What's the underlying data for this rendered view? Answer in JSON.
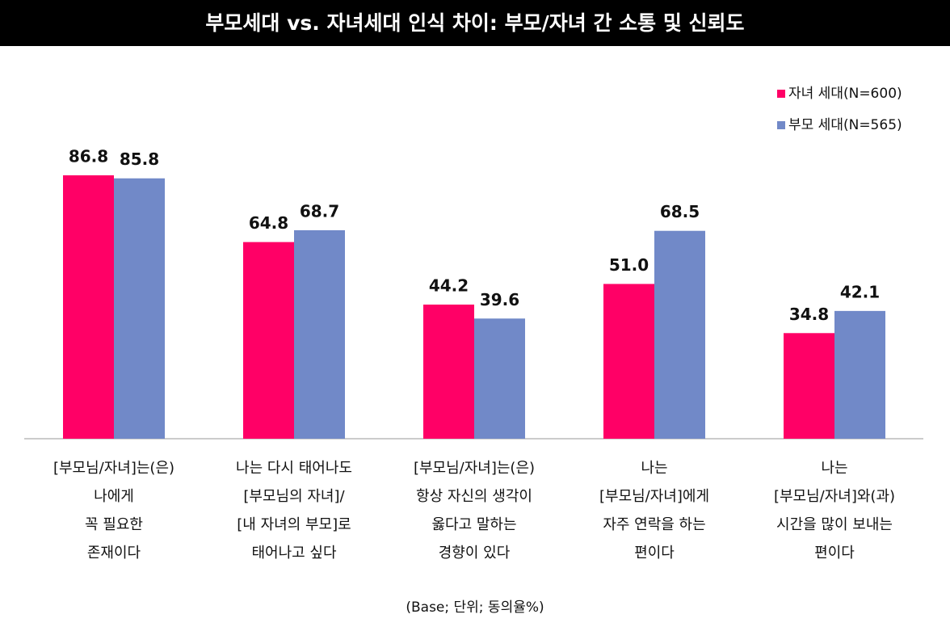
{
  "chart_data": {
    "type": "bar",
    "title": "부모세대  vs. 자녀세대 인식 차이: 부모/자녀 간 소통 및 신뢰도",
    "note": "(Base; 단위; 동의율%)",
    "categories": [
      [
        "[부모님/자녀]는(은)",
        "나에게",
        "꼭 필요한",
        "존재이다"
      ],
      [
        "나는 다시 태어나도",
        "[부모님의 자녀]/",
        "[내 자녀의 부모]로",
        "태어나고 싶다"
      ],
      [
        "[부모님/자녀]는(은)",
        "항상 자신의 생각이",
        "옳다고 말하는",
        "경향이 있다"
      ],
      [
        "나는",
        "[부모님/자녀]에게",
        "자주 연락을 하는",
        "편이다"
      ],
      [
        "나는",
        "[부모님/자녀]와(과)",
        "시간을 많이 보내는",
        "편이다"
      ]
    ],
    "series": [
      {
        "name": "자녀 세대(N=600)",
        "color": "#ff0066",
        "values": [
          86.8,
          64.8,
          44.2,
          51.0,
          34.8
        ],
        "value_labels": [
          "86.8",
          "64.8",
          "44.2",
          "51.0",
          "34.8"
        ]
      },
      {
        "name": "부모 세대(N=565)",
        "color": "#7189c8",
        "values": [
          85.8,
          68.7,
          39.6,
          68.5,
          42.1
        ],
        "value_labels": [
          "85.8",
          "68.7",
          "39.6",
          "68.5",
          "42.1"
        ]
      }
    ],
    "legend": "top-right"
  }
}
